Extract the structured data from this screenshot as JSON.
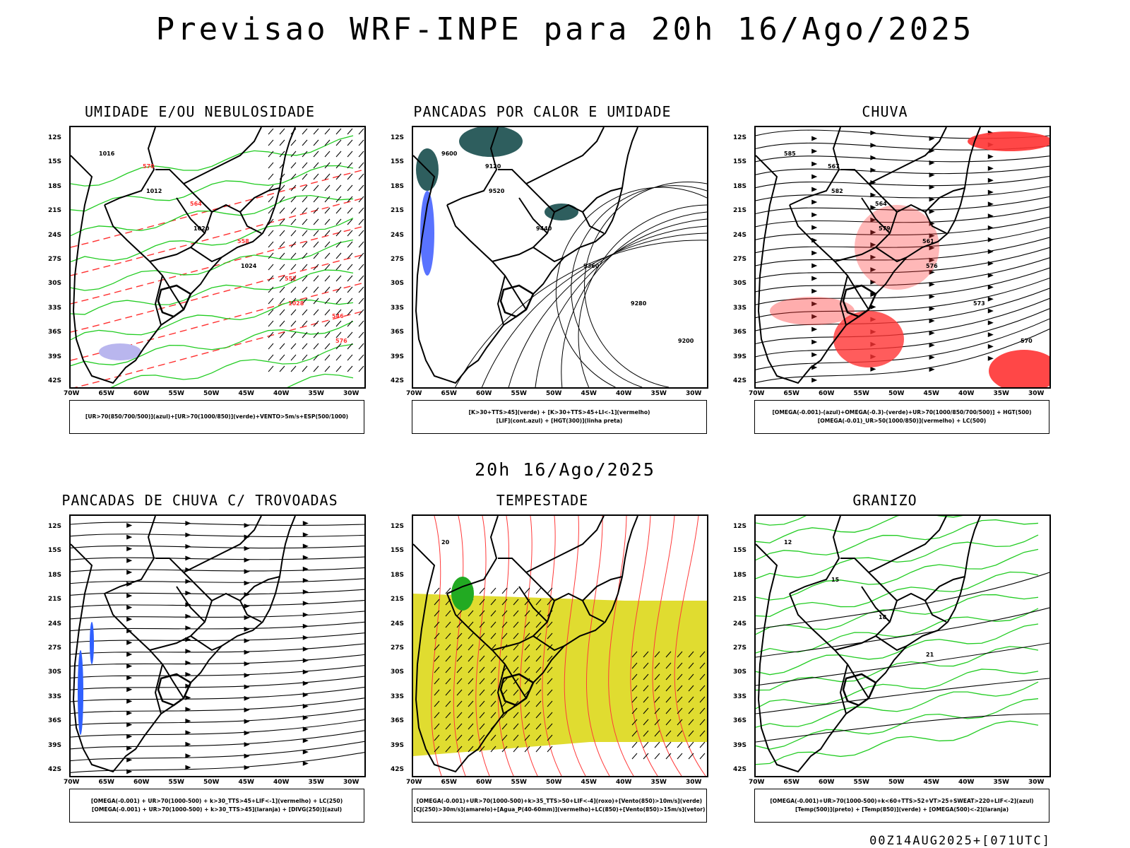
{
  "title": "Previsao WRF-INPE  para 20h 16/Ago/2025",
  "subtitle": "20h 16/Ago/2025",
  "footer": "00Z14AUG2025+[071UTC]",
  "axes": {
    "lat_labels": [
      "12S",
      "15S",
      "18S",
      "21S",
      "24S",
      "27S",
      "30S",
      "33S",
      "36S",
      "39S",
      "42S"
    ],
    "lon_labels": [
      "70W",
      "65W",
      "60W",
      "55W",
      "50W",
      "45W",
      "40W",
      "35W",
      "30W"
    ]
  },
  "panels": [
    {
      "title": "UMIDADE E/OU NEBULOSIDADE",
      "legend": [
        "[UR>70(850/700/500)](azul)+[UR>70(1000/850)](verde)+VENTO>5m/s+ESP(500/1000)"
      ],
      "contour_labels": [
        "1016",
        "1012",
        "1020",
        "1024",
        "1028",
        "576",
        "570",
        "564",
        "558",
        "552",
        "546"
      ]
    },
    {
      "title": "PANCADAS POR CALOR E UMIDADE",
      "legend": [
        "[K>30+TTS>45](verde) + [K>30+TTS>45+LI<-1](vermelho)",
        "[LIF](cont.azul) + [HGT(300)](linha preta)"
      ],
      "contour_labels": [
        "9600",
        "9520",
        "9440",
        "9360",
        "9280",
        "9200",
        "9120"
      ]
    },
    {
      "title": "CHUVA",
      "legend": [
        "[OMEGA(-0.001)-(azul)+OMEGA(-0.3)-(verde)+UR>70(1000/850/700/500)] + HGT(500)",
        "[OMEGA(-0.01)_UR>50(1000/850)](vermelho) + LC(500)"
      ],
      "contour_labels": [
        "585",
        "582",
        "579",
        "576",
        "573",
        "570",
        "567",
        "564",
        "561"
      ]
    },
    {
      "title": "PANCADAS DE CHUVA C/ TROVOADAS",
      "legend": [
        "[OMEGA(-0.001) + UR>70(1000-500) + k>30_TTS>45+LIF<-1](vermelho) + LC(250)",
        "[OMEGA(-0.001) + UR>70(1000-500) + k>30_TTS>45](laranja) + [DIVG(250)](azul)"
      ],
      "contour_labels": []
    },
    {
      "title": "TEMPESTADE",
      "legend": [
        "[OMEGA(-0.001)+UR>70(1000-500)+k>35_TTS>50+LIF<-4](roxo)+[Vento(850)>10m/s](verde)",
        "[CJ(250)>30m/s](amarelo)+[Agua_P(40-60mm)](vermelho)+LC(850)+[Vento(850)>15m/s](vetor)"
      ],
      "contour_labels": [
        "20"
      ]
    },
    {
      "title": "GRANIZO",
      "legend": [
        "[OMEGA(-0.001)+UR>70(1000-500)+k<60+TTS>52+VT>25+SWEAT>220+LIF<-2](azul)",
        "[Temp(500)](preto) + [Temp(850)](verde) + [OMEGA(500)<-2](laranja)"
      ],
      "contour_labels": [
        "12",
        "15",
        "18",
        "21"
      ]
    }
  ]
}
